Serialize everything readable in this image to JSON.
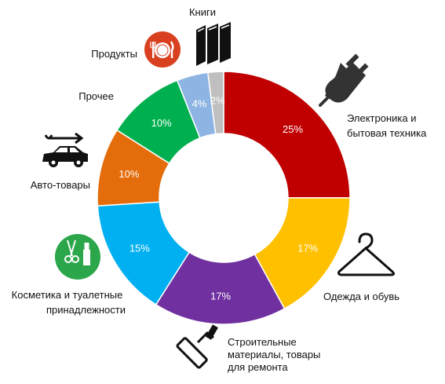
{
  "chart_data": {
    "type": "pie",
    "donut": true,
    "slices": [
      {
        "label": "Электроника и бытовая техника",
        "value": 25,
        "value_label": "25%",
        "color": "#C00000",
        "icon": "plug-icon"
      },
      {
        "label": "Одежда и обувь",
        "value": 17,
        "value_label": "17%",
        "color": "#FFC000",
        "icon": "hanger-icon"
      },
      {
        "label": "Строительные материалы, товары для ремонта",
        "value": 17,
        "value_label": "17%",
        "color": "#7030A0",
        "icon": "paint-roller-icon"
      },
      {
        "label": "Косметика и туалетные принадлежности",
        "value": 15,
        "value_label": "15%",
        "color": "#00B0F0",
        "icon": "cosmetics-icon"
      },
      {
        "label": "Авто-товары",
        "value": 10,
        "value_label": "10%",
        "color": "#E46C0A",
        "icon": "car-wrench-icon"
      },
      {
        "label": "Прочее",
        "value": 10,
        "value_label": "10%",
        "color": "#00B050",
        "icon": ""
      },
      {
        "label": "Продукты",
        "value": 4,
        "value_label": "4%",
        "color": "#8EB4E3",
        "icon": "food-plate-icon"
      },
      {
        "label": "Книги",
        "value": 2,
        "value_label": "2%",
        "color": "#BFBFBF",
        "icon": "books-icon"
      }
    ]
  }
}
